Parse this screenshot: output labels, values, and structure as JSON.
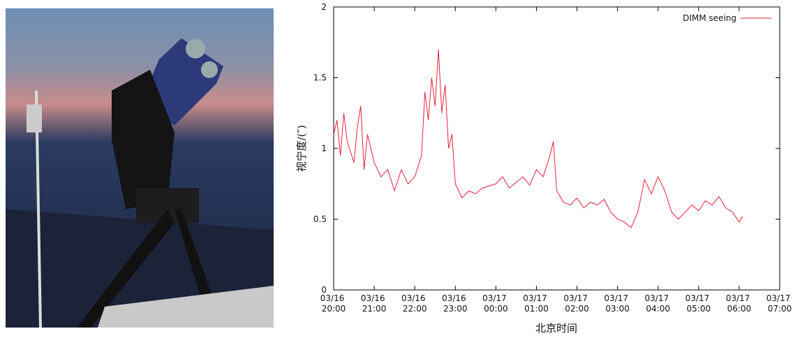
{
  "chart_data": {
    "type": "line",
    "ylabel": "视宁度/(″)",
    "xlabel": "北京时间",
    "legend": "top-right",
    "xlim": [
      "03/16 20:00",
      "03/17 07:00"
    ],
    "xticks": [
      "03/16 20:00",
      "03/16 21:00",
      "03/16 22:00",
      "03/16 23:00",
      "03/17 00:00",
      "03/17 01:00",
      "03/17 02:00",
      "03/17 03:00",
      "03/17 04:00",
      "03/17 05:00",
      "03/17 06:00",
      "03/17 07:00"
    ],
    "ylim": [
      0,
      2
    ],
    "yticks": [
      0,
      0.5,
      1,
      1.5,
      2
    ],
    "x": [
      "03/16 20:00",
      "03/16 20:05",
      "03/16 20:10",
      "03/16 20:15",
      "03/16 20:20",
      "03/16 20:30",
      "03/16 20:35",
      "03/16 20:40",
      "03/16 20:45",
      "03/16 20:50",
      "03/16 21:00",
      "03/16 21:10",
      "03/16 21:20",
      "03/16 21:30",
      "03/16 21:40",
      "03/16 21:50",
      "03/16 22:00",
      "03/16 22:10",
      "03/16 22:15",
      "03/16 22:20",
      "03/16 22:25",
      "03/16 22:30",
      "03/16 22:35",
      "03/16 22:40",
      "03/16 22:45",
      "03/16 22:50",
      "03/16 22:55",
      "03/16 23:00",
      "03/16 23:10",
      "03/16 23:20",
      "03/16 23:30",
      "03/16 23:40",
      "03/17 00:00",
      "03/17 00:10",
      "03/17 00:20",
      "03/17 00:30",
      "03/17 00:40",
      "03/17 00:50",
      "03/17 01:00",
      "03/17 01:10",
      "03/17 01:20",
      "03/17 01:25",
      "03/17 01:30",
      "03/17 01:40",
      "03/17 01:50",
      "03/17 02:00",
      "03/17 02:10",
      "03/17 02:20",
      "03/17 02:30",
      "03/17 02:40",
      "03/17 02:50",
      "03/17 03:00",
      "03/17 03:10",
      "03/17 03:20",
      "03/17 03:30",
      "03/17 03:40",
      "03/17 03:50",
      "03/17 04:00",
      "03/17 04:10",
      "03/17 04:20",
      "03/17 04:30",
      "03/17 04:40",
      "03/17 04:50",
      "03/17 05:00",
      "03/17 05:10",
      "03/17 05:20",
      "03/17 05:30",
      "03/17 05:40",
      "03/17 05:50",
      "03/17 06:00",
      "03/17 06:05"
    ],
    "series": [
      {
        "name": "DIMM seeing",
        "color": "#e8203a",
        "values": [
          1.1,
          1.2,
          0.95,
          1.25,
          1.05,
          0.9,
          1.15,
          1.3,
          0.85,
          1.1,
          0.9,
          0.8,
          0.85,
          0.7,
          0.85,
          0.75,
          0.8,
          0.95,
          1.4,
          1.2,
          1.5,
          1.3,
          1.7,
          1.25,
          1.45,
          1.0,
          1.1,
          0.75,
          0.65,
          0.7,
          0.68,
          0.72,
          0.75,
          0.8,
          0.72,
          0.76,
          0.8,
          0.74,
          0.85,
          0.8,
          0.95,
          1.05,
          0.7,
          0.62,
          0.6,
          0.65,
          0.58,
          0.62,
          0.6,
          0.64,
          0.55,
          0.5,
          0.48,
          0.44,
          0.55,
          0.78,
          0.68,
          0.8,
          0.7,
          0.55,
          0.5,
          0.55,
          0.6,
          0.56,
          0.63,
          0.6,
          0.66,
          0.58,
          0.55,
          0.48,
          0.52
        ]
      }
    ]
  }
}
